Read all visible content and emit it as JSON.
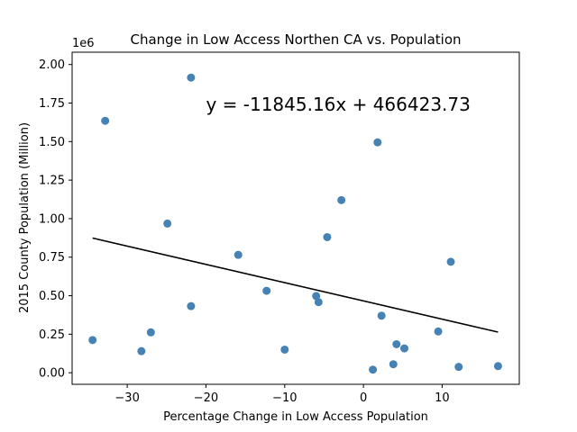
{
  "chart_data": {
    "type": "scatter",
    "title": "Change in Low Access Northen CA vs. Population",
    "xlabel": "Percentage Change in Low Access Population",
    "ylabel": "2015 County Population (Million)",
    "y_offset_label": "1e6",
    "xlim": [
      -37,
      19.8
    ],
    "ylim": [
      -75000,
      2080000
    ],
    "x_ticks": [
      -30,
      -20,
      -10,
      0,
      10
    ],
    "x_tick_labels": [
      "−30",
      "−20",
      "−10",
      "0",
      "10"
    ],
    "y_ticks": [
      0,
      250000,
      500000,
      750000,
      1000000,
      1250000,
      1500000,
      1750000,
      2000000
    ],
    "y_tick_labels": [
      "0.00",
      "0.25",
      "0.50",
      "0.75",
      "1.00",
      "1.25",
      "1.50",
      "1.75",
      "2.00"
    ],
    "grid": false,
    "point_color": "#4682b4",
    "line_color": "#000000",
    "points": [
      {
        "x": -34.4,
        "y": 212000
      },
      {
        "x": -32.8,
        "y": 1635000
      },
      {
        "x": -28.2,
        "y": 140000
      },
      {
        "x": -27.0,
        "y": 262000
      },
      {
        "x": -24.9,
        "y": 968000
      },
      {
        "x": -21.9,
        "y": 1915000
      },
      {
        "x": -21.9,
        "y": 432000
      },
      {
        "x": -15.9,
        "y": 765000
      },
      {
        "x": -12.3,
        "y": 532000
      },
      {
        "x": -10.0,
        "y": 150000
      },
      {
        "x": -6.0,
        "y": 498000
      },
      {
        "x": -5.7,
        "y": 458000
      },
      {
        "x": -4.6,
        "y": 880000
      },
      {
        "x": -2.8,
        "y": 1120000
      },
      {
        "x": 1.2,
        "y": 20000
      },
      {
        "x": 1.8,
        "y": 1495000
      },
      {
        "x": 2.3,
        "y": 370000
      },
      {
        "x": 3.8,
        "y": 55000
      },
      {
        "x": 4.2,
        "y": 185000
      },
      {
        "x": 5.2,
        "y": 158000
      },
      {
        "x": 9.5,
        "y": 268000
      },
      {
        "x": 11.1,
        "y": 720000
      },
      {
        "x": 12.1,
        "y": 38000
      },
      {
        "x": 17.1,
        "y": 43000
      }
    ],
    "regression": {
      "slope": -11845.16,
      "intercept": 466423.73,
      "x_start": -34.4,
      "x_end": 17.1
    },
    "annotation": {
      "text": "y = -11845.16x + 466423.73",
      "x": -20,
      "y": 1700000
    }
  }
}
